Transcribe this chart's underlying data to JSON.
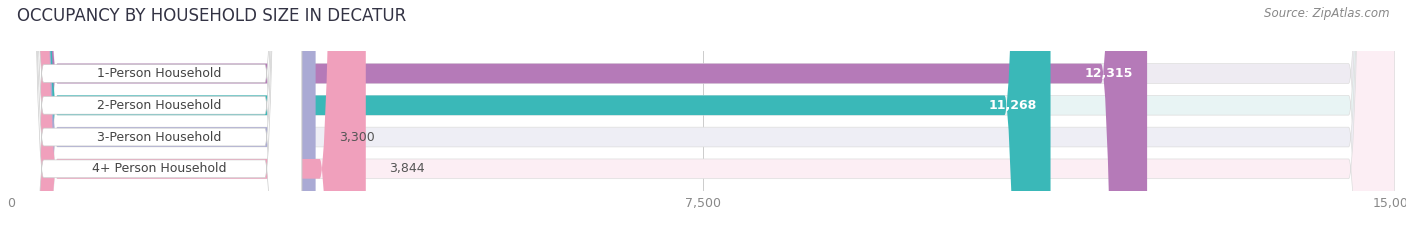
{
  "title": "OCCUPANCY BY HOUSEHOLD SIZE IN DECATUR",
  "source": "Source: ZipAtlas.com",
  "categories": [
    "1-Person Household",
    "2-Person Household",
    "3-Person Household",
    "4+ Person Household"
  ],
  "values": [
    12315,
    11268,
    3300,
    3844
  ],
  "bar_colors": [
    "#b57ab8",
    "#3ab8b8",
    "#aaaad4",
    "#f0a0bc"
  ],
  "bar_bg_colors": [
    "#eeebf2",
    "#e8f4f4",
    "#eeeef5",
    "#fceef4"
  ],
  "xlim": [
    0,
    15000
  ],
  "xticks": [
    0,
    7500,
    15000
  ],
  "title_fontsize": 12,
  "source_fontsize": 8.5,
  "label_fontsize": 9,
  "value_fontsize": 9,
  "background_color": "#ffffff"
}
